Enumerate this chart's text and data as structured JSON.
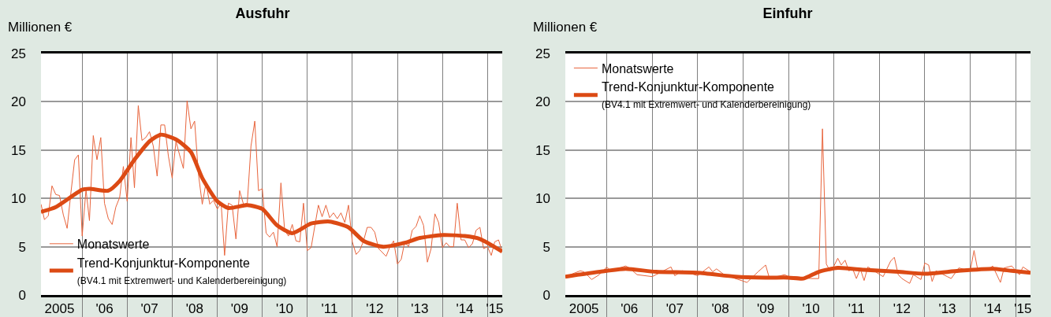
{
  "chart_data": [
    {
      "type": "line",
      "title": "Ausfuhr",
      "ylabel": "Millionen €",
      "legend": "bottom left",
      "grid": true,
      "xlim": [
        "2005-02",
        "2015-05"
      ],
      "ylim": [
        0,
        25
      ],
      "yticks": [
        0,
        5,
        10,
        15,
        20,
        25
      ],
      "xticks": [
        {
          "value": "2005-07",
          "label": "2005"
        },
        {
          "value": "2006-07",
          "label": "'06"
        },
        {
          "value": "2007-07",
          "label": "'07"
        },
        {
          "value": "2008-07",
          "label": "'08"
        },
        {
          "value": "2009-07",
          "label": "'09"
        },
        {
          "value": "2010-07",
          "label": "'10"
        },
        {
          "value": "2011-07",
          "label": "'11"
        },
        {
          "value": "2012-07",
          "label": "'12"
        },
        {
          "value": "2013-07",
          "label": "'13"
        },
        {
          "value": "2014-07",
          "label": "'14"
        },
        {
          "value": "2015-03",
          "label": "'15"
        },
        {
          "value": "2006-01",
          "label": null
        },
        {
          "value": "2007-01",
          "label": null
        },
        {
          "value": "2008-01",
          "label": null
        },
        {
          "value": "2009-01",
          "label": null
        },
        {
          "value": "2010-01",
          "label": null
        },
        {
          "value": "2011-01",
          "label": null
        },
        {
          "value": "2012-01",
          "label": null
        },
        {
          "value": "2013-01",
          "label": null
        },
        {
          "value": "2014-01",
          "label": null
        },
        {
          "value": "2015-01",
          "label": null
        }
      ],
      "x": [
        "2005-02",
        "2005-03",
        "2005-04",
        "2005-05",
        "2005-06",
        "2005-07",
        "2005-08",
        "2005-09",
        "2005-10",
        "2005-11",
        "2005-12",
        "2006-01",
        "2006-02",
        "2006-03",
        "2006-04",
        "2006-05",
        "2006-06",
        "2006-07",
        "2006-08",
        "2006-09",
        "2006-10",
        "2006-11",
        "2006-12",
        "2007-01",
        "2007-02",
        "2007-03",
        "2007-04",
        "2007-05",
        "2007-06",
        "2007-07",
        "2007-08",
        "2007-09",
        "2007-10",
        "2007-11",
        "2007-12",
        "2008-01",
        "2008-02",
        "2008-03",
        "2008-04",
        "2008-05",
        "2008-06",
        "2008-07",
        "2008-08",
        "2008-09",
        "2008-10",
        "2008-11",
        "2008-12",
        "2009-01",
        "2009-02",
        "2009-03",
        "2009-04",
        "2009-05",
        "2009-06",
        "2009-07",
        "2009-08",
        "2009-09",
        "2009-10",
        "2009-11",
        "2009-12",
        "2010-01",
        "2010-02",
        "2010-03",
        "2010-04",
        "2010-05",
        "2010-06",
        "2010-07",
        "2010-08",
        "2010-09",
        "2010-10",
        "2010-11",
        "2010-12",
        "2011-01",
        "2011-02",
        "2011-03",
        "2011-04",
        "2011-05",
        "2011-06",
        "2011-07",
        "2011-08",
        "2011-09",
        "2011-10",
        "2011-11",
        "2011-12",
        "2012-01",
        "2012-02",
        "2012-03",
        "2012-04",
        "2012-05",
        "2012-06",
        "2012-07",
        "2012-08",
        "2012-09",
        "2012-10",
        "2012-11",
        "2012-12",
        "2013-01",
        "2013-02",
        "2013-03",
        "2013-04",
        "2013-05",
        "2013-06",
        "2013-07",
        "2013-08",
        "2013-09",
        "2013-10",
        "2013-11",
        "2013-12",
        "2014-01",
        "2014-02",
        "2014-03",
        "2014-04",
        "2014-05",
        "2014-06",
        "2014-07",
        "2014-08",
        "2014-09",
        "2014-10",
        "2014-11",
        "2014-12",
        "2015-01",
        "2015-02",
        "2015-03",
        "2015-04",
        "2015-05"
      ],
      "series": [
        {
          "name": "Monatswerte",
          "color": "#e8643c",
          "values": [
            9.4,
            7.8,
            8.2,
            11.3,
            10.4,
            10.3,
            8.3,
            6.9,
            10.5,
            14.0,
            14.5,
            6.1,
            10.9,
            7.7,
            16.5,
            14.0,
            16.3,
            9.5,
            7.9,
            7.3,
            9.1,
            10.1,
            13.3,
            9.7,
            16.3,
            11.1,
            19.6,
            16.0,
            16.3,
            16.9,
            15.4,
            12.3,
            17.6,
            17.6,
            14.4,
            12.1,
            15.9,
            14.5,
            13.1,
            20.1,
            17.2,
            18.0,
            12.5,
            9.4,
            11.6,
            9.4,
            9.8,
            8.9,
            9.5,
            4.1,
            9.5,
            9.3,
            5.8,
            10.8,
            9.4,
            9.5,
            15.4,
            18.0,
            10.8,
            11.0,
            6.4,
            6.0,
            6.5,
            5.0,
            11.6,
            6.7,
            6.1,
            7.3,
            5.6,
            5.5,
            9.5,
            4.6,
            4.9,
            7.0,
            9.3,
            8.1,
            9.3,
            8.0,
            8.5,
            7.9,
            8.5,
            7.5,
            9.3,
            5.5,
            4.2,
            4.6,
            5.6,
            7.0,
            7.0,
            6.5,
            4.8,
            4.4,
            4.0,
            5.0,
            5.6,
            3.2,
            3.7,
            5.5,
            5.0,
            6.7,
            7.1,
            8.2,
            7.2,
            3.4,
            4.8,
            8.4,
            7.5,
            4.9,
            5.4,
            5.0,
            5.0,
            9.5,
            5.7,
            5.7,
            4.9,
            5.3,
            6.7,
            7.0,
            4.8,
            5.0,
            4.1,
            5.5,
            5.7,
            4.5
          ]
        },
        {
          "name": "Trend-Konjunktur-Komponente\n(BV4.1 mit Extremwert- und Kalenderbereinigung)",
          "color": "#dc4a14",
          "x": [
            "2005-02",
            "2005-06",
            "2006-01",
            "2006-03",
            "2006-08",
            "2006-11",
            "2007-03",
            "2007-07",
            "2007-10",
            "2008-02",
            "2008-06",
            "2008-09",
            "2009-01",
            "2009-04",
            "2009-09",
            "2010-01",
            "2010-05",
            "2010-09",
            "2011-02",
            "2011-07",
            "2011-12",
            "2012-04",
            "2012-09",
            "2013-03",
            "2013-07",
            "2014-01",
            "2014-07",
            "2014-11",
            "2015-05"
          ],
          "values": [
            8.6,
            9.1,
            10.9,
            11.0,
            10.8,
            11.8,
            14.0,
            15.9,
            16.6,
            16.1,
            14.8,
            12.1,
            9.7,
            9.0,
            9.3,
            8.9,
            7.2,
            6.4,
            7.4,
            7.6,
            7.0,
            5.6,
            5.0,
            5.4,
            5.9,
            6.2,
            6.1,
            5.8,
            4.5
          ]
        }
      ]
    },
    {
      "type": "line",
      "title": "Einfuhr",
      "ylabel": "Millionen €",
      "legend": "top left",
      "grid": true,
      "xlim": [
        "2005-02",
        "2015-05"
      ],
      "ylim": [
        0,
        25
      ],
      "yticks": [
        0,
        5,
        10,
        15,
        20,
        25
      ],
      "xticks": [
        {
          "value": "2005-07",
          "label": "2005"
        },
        {
          "value": "2006-07",
          "label": "'06"
        },
        {
          "value": "2007-07",
          "label": "'07"
        },
        {
          "value": "2008-07",
          "label": "'08"
        },
        {
          "value": "2009-07",
          "label": "'09"
        },
        {
          "value": "2010-07",
          "label": "'10"
        },
        {
          "value": "2011-07",
          "label": "'11"
        },
        {
          "value": "2012-07",
          "label": "'12"
        },
        {
          "value": "2013-07",
          "label": "'13"
        },
        {
          "value": "2014-07",
          "label": "'14"
        },
        {
          "value": "2015-03",
          "label": "'15"
        },
        {
          "value": "2006-01",
          "label": null
        },
        {
          "value": "2007-01",
          "label": null
        },
        {
          "value": "2008-01",
          "label": null
        },
        {
          "value": "2009-01",
          "label": null
        },
        {
          "value": "2010-01",
          "label": null
        },
        {
          "value": "2011-01",
          "label": null
        },
        {
          "value": "2012-01",
          "label": null
        },
        {
          "value": "2013-01",
          "label": null
        },
        {
          "value": "2014-01",
          "label": null
        },
        {
          "value": "2015-01",
          "label": null
        }
      ],
      "series": [
        {
          "name": "Monatswerte",
          "color": "#e8643c",
          "x": [
            "2005-02",
            "2005-06",
            "2005-07",
            "2005-09",
            "2005-11",
            "2006-01",
            "2006-02",
            "2006-06",
            "2006-07",
            "2006-09",
            "2007-01",
            "2007-06",
            "2007-07",
            "2007-09",
            "2008-01",
            "2008-04",
            "2008-05",
            "2008-06",
            "2008-08",
            "2009-02",
            "2009-05",
            "2009-07",
            "2009-08",
            "2009-10",
            "2009-12",
            "2010-01",
            "2010-03",
            "2010-07",
            "2010-09",
            "2010-10",
            "2010-11",
            "2010-12",
            "2011-01",
            "2011-02",
            "2011-03",
            "2011-04",
            "2011-05",
            "2011-06",
            "2011-07",
            "2011-08",
            "2011-09",
            "2011-10",
            "2012-02",
            "2012-04",
            "2012-05",
            "2012-06",
            "2012-07",
            "2012-09",
            "2012-10",
            "2012-12",
            "2013-01",
            "2013-02",
            "2013-03",
            "2013-04",
            "2013-07",
            "2013-08",
            "2013-10",
            "2014-01",
            "2014-02",
            "2014-03",
            "2014-06",
            "2014-07",
            "2014-09",
            "2014-10",
            "2014-12",
            "2015-02",
            "2015-03",
            "2015-05"
          ],
          "values": [
            1.9,
            2.5,
            2.4,
            1.6,
            2.1,
            2.9,
            2.5,
            3.0,
            2.8,
            2.1,
            1.9,
            2.9,
            2.0,
            2.5,
            2.0,
            2.9,
            2.4,
            2.7,
            2.1,
            1.3,
            2.4,
            3.1,
            1.7,
            1.9,
            2.1,
            1.9,
            1.9,
            1.7,
            1.7,
            17.2,
            3.2,
            2.5,
            3.0,
            3.8,
            3.1,
            3.6,
            2.5,
            2.7,
            1.7,
            2.7,
            1.5,
            2.9,
            1.9,
            3.5,
            3.9,
            2.1,
            1.7,
            1.2,
            2.1,
            1.6,
            3.3,
            3.1,
            1.4,
            2.5,
            1.9,
            1.7,
            2.8,
            2.5,
            4.6,
            2.7,
            2.7,
            3.0,
            1.3,
            2.8,
            3.0,
            2.1,
            2.9,
            2.4
          ]
        },
        {
          "name": "Trend-Konjunktur-Komponente\n(BV4.1 mit Extremwert- und Kalenderbereinigung)",
          "color": "#dc4a14",
          "x": [
            "2005-02",
            "2006-01",
            "2006-06",
            "2007-02",
            "2008-01",
            "2008-11",
            "2009-07",
            "2010-01",
            "2010-05",
            "2010-09",
            "2011-02",
            "2011-09",
            "2012-06",
            "2013-01",
            "2013-10",
            "2014-07",
            "2014-12",
            "2015-05"
          ],
          "values": [
            1.9,
            2.5,
            2.7,
            2.4,
            2.3,
            1.9,
            1.8,
            1.8,
            1.7,
            2.4,
            2.8,
            2.6,
            2.4,
            2.2,
            2.5,
            2.7,
            2.5,
            2.3
          ]
        }
      ]
    }
  ]
}
